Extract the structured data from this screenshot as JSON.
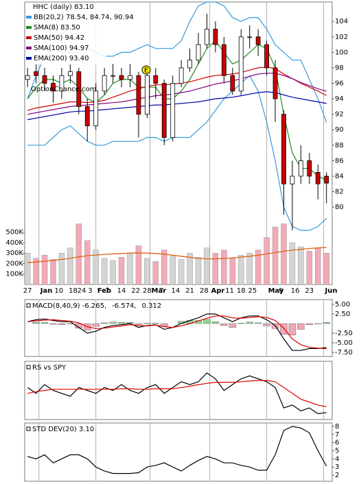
{
  "chart_data": [
    {
      "type": "candlestick",
      "title": "HHC (daily) 83.10",
      "watermark": "OptionChance.com",
      "earnings_label": "E",
      "x": [
        0,
        3,
        6,
        9,
        12,
        15,
        18,
        21,
        24,
        27,
        30,
        33,
        36,
        39,
        42,
        45,
        48,
        51,
        54,
        57,
        60,
        63,
        66,
        69,
        72,
        75,
        78,
        81,
        84,
        87,
        90,
        93,
        96,
        99,
        102,
        105
      ],
      "open": [
        96.5,
        97.5,
        97,
        96,
        95,
        97,
        97.5,
        93,
        90.5,
        95,
        97,
        97,
        96.5,
        97,
        92,
        97,
        96,
        89,
        96,
        98,
        99,
        101,
        103,
        101,
        97,
        95,
        102,
        102,
        101,
        98,
        92,
        83,
        84,
        86,
        84.5,
        84
      ],
      "high": [
        98,
        98.5,
        98,
        97,
        98,
        98.5,
        98,
        94,
        96,
        98,
        98.5,
        98,
        98.5,
        97.5,
        98,
        98,
        96.5,
        97,
        99,
        100.5,
        102.5,
        105,
        104,
        102,
        98,
        103,
        103.5,
        103,
        101.5,
        99,
        92.5,
        86,
        88,
        87,
        85.5,
        84.5
      ],
      "low": [
        95.5,
        96,
        95,
        93.5,
        94,
        96,
        92,
        88.5,
        90,
        94.5,
        96,
        95.5,
        95.5,
        89,
        91.5,
        94,
        88,
        88.5,
        95.5,
        97.5,
        98.5,
        100.5,
        100,
        96,
        94.5,
        94.5,
        100.5,
        99.5,
        97,
        91,
        79,
        77,
        83,
        83,
        81,
        80.5
      ],
      "close": [
        97,
        97,
        96,
        95,
        97,
        97.5,
        93,
        90.5,
        95,
        97,
        97,
        96.5,
        97,
        92,
        97,
        96,
        89,
        96,
        98,
        99,
        101,
        103,
        101,
        97,
        95,
        102,
        102,
        101,
        98,
        94,
        83,
        84,
        86,
        84,
        83,
        83.1
      ],
      "up_color": "#ffffff",
      "down_color": "#cc0000",
      "series": [
        {
          "name": "BB(20,2) 78.54, 84.74, 90.94",
          "color": "#3399dd",
          "values": [
            94,
            97,
            99.5,
            100.5,
            100,
            100,
            100,
            100.5,
            100,
            99.5,
            99.5,
            100,
            100,
            100.5,
            101,
            100.5,
            100.5,
            100.5,
            101.5,
            104,
            106,
            106.5,
            106.5,
            106,
            104.5,
            104,
            104.5,
            104.5,
            103,
            101,
            100,
            99,
            99,
            96.5,
            94,
            90.94
          ],
          "lower": [
            88,
            88,
            88,
            89,
            90,
            90.5,
            89.5,
            88.5,
            88,
            88,
            88.5,
            88.5,
            88.5,
            88.5,
            89,
            89,
            88.5,
            89,
            89,
            89,
            90,
            91,
            92.5,
            94,
            95,
            96,
            97,
            95,
            91,
            86,
            80,
            77.5,
            77,
            77,
            77.5,
            78.54
          ]
        },
        {
          "name": "SMA(8) 83.50",
          "color": "#1e8a1e",
          "values": [
            94,
            95.5,
            96.5,
            96.5,
            96,
            96.5,
            95.5,
            94,
            93.5,
            94.5,
            96,
            96.5,
            96.5,
            95.5,
            95.5,
            95.5,
            94,
            94,
            95,
            96.5,
            98.5,
            100.5,
            101.5,
            100,
            98.5,
            99,
            100,
            101,
            100.5,
            98,
            92,
            87,
            85,
            85,
            84,
            83.5
          ]
        },
        {
          "name": "SMA(50) 94.42",
          "color": "#cc0000",
          "values": [
            92.5,
            92.8,
            93,
            93.2,
            93.4,
            93.6,
            93.6,
            93.5,
            93.6,
            93.8,
            94.2,
            94.6,
            95,
            95.3,
            95.6,
            95.8,
            95.8,
            95.9,
            96,
            96.2,
            96.5,
            96.8,
            97,
            97.1,
            97.2,
            97.4,
            97.7,
            98,
            98.1,
            97.9,
            97.2,
            96.6,
            96,
            95.5,
            95,
            94.42
          ]
        },
        {
          "name": "SMA(100) 94.97",
          "color": "#800080",
          "values": [
            92,
            92.2,
            92.4,
            92.6,
            92.8,
            93,
            93.1,
            93.2,
            93.3,
            93.4,
            93.5,
            93.6,
            93.8,
            94,
            94.2,
            94.4,
            94.5,
            94.6,
            94.8,
            95,
            95.3,
            95.6,
            95.9,
            96.1,
            96.3,
            96.6,
            96.9,
            97.2,
            97.3,
            97.3,
            97,
            96.6,
            96.1,
            95.7,
            95.3,
            94.97
          ]
        },
        {
          "name": "EMA(200) 93.40",
          "color": "#0000aa",
          "values": [
            91.3,
            91.5,
            91.7,
            91.9,
            92.1,
            92.3,
            92.4,
            92.4,
            92.5,
            92.6,
            92.7,
            92.8,
            92.9,
            93,
            93.1,
            93.2,
            93.2,
            93.3,
            93.4,
            93.5,
            93.6,
            93.8,
            94,
            94.1,
            94.2,
            94.4,
            94.6,
            94.8,
            94.9,
            94.8,
            94.5,
            94.2,
            94,
            93.8,
            93.6,
            93.4
          ]
        }
      ],
      "volume": [
        300000,
        250000,
        280000,
        240000,
        300000,
        350000,
        580000,
        420000,
        330000,
        250000,
        230000,
        260000,
        300000,
        370000,
        250000,
        220000,
        330000,
        270000,
        240000,
        300000,
        260000,
        350000,
        300000,
        330000,
        250000,
        280000,
        300000,
        330000,
        450000,
        550000,
        580000,
        400000,
        360000,
        320000,
        350000,
        300000
      ],
      "volume_ma": [
        210000,
        215000,
        222000,
        230000,
        240000,
        250000,
        265000,
        275000,
        282000,
        288000,
        293000,
        297000,
        300000,
        302000,
        300000,
        296000,
        290000,
        280000,
        270000,
        260000,
        250000,
        245000,
        245000,
        250000,
        255000,
        262000,
        270000,
        280000,
        292000,
        305000,
        318000,
        328000,
        336000,
        344000,
        350000,
        355000
      ],
      "volume_up_color": "#d4d4d4",
      "volume_down_color": "#f2aab6",
      "volume_ma_color": "#e0600e",
      "xlim": [
        -1,
        107
      ],
      "xticks": [
        {
          "value": 0,
          "label": "27"
        },
        {
          "value": 4,
          "label": "Jan"
        },
        {
          "value": 11,
          "label": "10"
        },
        {
          "value": 16,
          "label": "18"
        },
        {
          "value": 19,
          "label": "24"
        },
        {
          "value": 22,
          "label": "3"
        },
        {
          "value": 24,
          "label": "Feb"
        },
        {
          "value": 28,
          "label": "7"
        },
        {
          "value": 33,
          "label": "14"
        },
        {
          "value": 38,
          "label": "22"
        },
        {
          "value": 42,
          "label": "28"
        },
        {
          "value": 43,
          "label": "Mar"
        },
        {
          "value": 47,
          "label": "7"
        },
        {
          "value": 52,
          "label": "14"
        },
        {
          "value": 57,
          "label": "21"
        },
        {
          "value": 62,
          "label": "28"
        },
        {
          "value": 64,
          "label": "Apr"
        },
        {
          "value": 71,
          "label": "11"
        },
        {
          "value": 75,
          "label": "18"
        },
        {
          "value": 79,
          "label": "25"
        },
        {
          "value": 84,
          "label": "May"
        },
        {
          "value": 89,
          "label": "9"
        },
        {
          "value": 94,
          "label": "16"
        },
        {
          "value": 99,
          "label": "23"
        },
        {
          "value": 104,
          "label": "Jun"
        }
      ],
      "ylim": [
        70,
        106.5
      ],
      "yticks": [
        80,
        82,
        84,
        86,
        88,
        90,
        92,
        94,
        96,
        98,
        100,
        102,
        104
      ],
      "y2lim": [
        0,
        2700000
      ],
      "y2ticks": [
        {
          "value": 100000,
          "label": "100K"
        },
        {
          "value": 200000,
          "label": "200K"
        },
        {
          "value": 300000,
          "label": "300K"
        },
        {
          "value": 400000,
          "label": "400K"
        },
        {
          "value": 500000,
          "label": "500K"
        }
      ]
    },
    {
      "type": "line",
      "x": [
        0,
        3,
        6,
        9,
        12,
        15,
        18,
        21,
        24,
        27,
        30,
        33,
        36,
        39,
        42,
        45,
        48,
        51,
        54,
        57,
        60,
        63,
        66,
        69,
        72,
        75,
        78,
        81,
        84,
        87,
        90,
        93,
        96,
        99,
        102,
        105
      ],
      "series": [
        {
          "name": "MACD(8,40,9) -6.265,",
          "color": "#000000",
          "values": [
            0.5,
            1,
            1.2,
            0.8,
            0.5,
            0.5,
            -1,
            -2.5,
            -2,
            -1,
            -0.5,
            -0.3,
            0,
            -1,
            -0.5,
            -0.3,
            -1.5,
            -1,
            0,
            0.8,
            1.5,
            2.5,
            2.5,
            1.5,
            0.5,
            1.5,
            2,
            2,
            1,
            -0.5,
            -4,
            -7,
            -7,
            -6.5,
            -6.5,
            -6.265
          ]
        },
        {
          "name": "-6.574,",
          "color": "#dd0000",
          "values": [
            0.5,
            0.7,
            0.9,
            1,
            0.8,
            0.6,
            0.2,
            -0.8,
            -1.3,
            -1.2,
            -0.9,
            -0.6,
            -0.3,
            -0.5,
            -0.6,
            -0.4,
            -0.8,
            -1,
            -0.6,
            0,
            0.7,
            1.4,
            2,
            2,
            1.5,
            1.4,
            1.6,
            1.8,
            1.6,
            0.8,
            -1.2,
            -4,
            -5.5,
            -6.2,
            -6.4,
            -6.574
          ]
        },
        {
          "name": "0.312",
          "color": "#2040c0",
          "type": "bar",
          "up_color": "#8fd88f",
          "down_color": "#f2a6b4",
          "values": [
            0,
            0.3,
            0.3,
            -0.2,
            -0.3,
            -0.1,
            -1.2,
            -1.7,
            -0.7,
            0.2,
            0.4,
            0.3,
            0.3,
            -0.5,
            0.1,
            0.1,
            -0.7,
            0,
            0.6,
            0.8,
            0.8,
            1.1,
            0.5,
            -0.5,
            -1,
            0.1,
            0.4,
            0.2,
            -0.6,
            -1.3,
            -2.8,
            -3,
            -1.5,
            -0.3,
            -0.1,
            0.312
          ]
        }
      ],
      "ylim": [
        -8.57,
        6.25
      ],
      "yticks": [
        {
          "value": 5,
          "label": "5.00"
        },
        {
          "value": 2.5,
          "label": "2.50"
        },
        {
          "value": -2.5,
          "label": "-2.50"
        },
        {
          "value": -5,
          "label": "-5.00"
        },
        {
          "value": -7.5,
          "label": "-7.50"
        }
      ]
    },
    {
      "type": "line",
      "x": [
        0,
        3,
        6,
        9,
        12,
        15,
        18,
        21,
        24,
        27,
        30,
        33,
        36,
        39,
        42,
        45,
        48,
        51,
        54,
        57,
        60,
        63,
        66,
        69,
        72,
        75,
        78,
        81,
        84,
        87,
        90,
        93,
        96,
        99,
        102,
        105
      ],
      "series": [
        {
          "name": "RS vs SPY",
          "color": "#000000",
          "values": [
            55,
            45,
            60,
            50,
            45,
            40,
            55,
            50,
            45,
            55,
            50,
            60,
            50,
            45,
            55,
            60,
            45,
            55,
            65,
            60,
            65,
            80,
            70,
            50,
            60,
            70,
            75,
            70,
            65,
            55,
            20,
            25,
            15,
            20,
            10,
            12
          ]
        },
        {
          "color": "#dd0000",
          "values": [
            45,
            48,
            50,
            52,
            52,
            52,
            52,
            52,
            52,
            52,
            52,
            53,
            53,
            52,
            52,
            53,
            53,
            53,
            55,
            57,
            60,
            62,
            64,
            64,
            64,
            65,
            66,
            67,
            67,
            65,
            55,
            45,
            35,
            30,
            25,
            22
          ]
        }
      ],
      "ylim": [
        0,
        100
      ]
    },
    {
      "type": "line",
      "x": [
        0,
        3,
        6,
        9,
        12,
        15,
        18,
        21,
        24,
        27,
        30,
        33,
        36,
        39,
        42,
        45,
        48,
        51,
        54,
        57,
        60,
        63,
        66,
        69,
        72,
        75,
        78,
        81,
        84,
        87,
        90,
        93,
        96,
        99,
        102,
        105
      ],
      "series": [
        {
          "name": "STD DEV(20) 3.10",
          "color": "#000000",
          "values": [
            4.3,
            4,
            4.5,
            3.5,
            4,
            4.5,
            4.5,
            4,
            3,
            2.5,
            2.2,
            2.2,
            2.2,
            2.3,
            3,
            3.2,
            3.5,
            3,
            2.5,
            3.2,
            3.8,
            4.3,
            4,
            3.5,
            3.5,
            3.2,
            3,
            2.6,
            2.6,
            4.5,
            7.5,
            8,
            7.8,
            7.2,
            5,
            3.1
          ]
        }
      ],
      "ylim": [
        1.24,
        8.42
      ],
      "yticks": [
        2,
        3,
        4,
        5,
        6,
        7,
        8
      ]
    }
  ]
}
